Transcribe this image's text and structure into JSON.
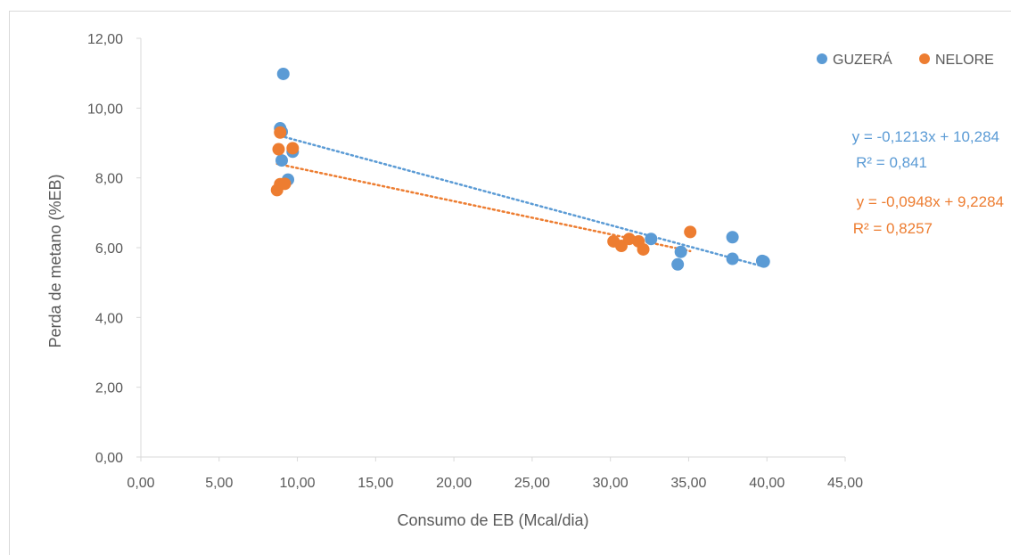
{
  "chart_data": {
    "type": "scatter",
    "title": "",
    "xlabel": "Consumo de EB (Mcal/dia)",
    "ylabel": "Perda de metano (%EB)",
    "xlim": [
      0,
      45
    ],
    "ylim": [
      0,
      12
    ],
    "x_ticks": [
      "0,00",
      "5,00",
      "10,00",
      "15,00",
      "20,00",
      "25,00",
      "30,00",
      "35,00",
      "40,00",
      "45,00"
    ],
    "y_ticks": [
      "0,00",
      "2,00",
      "4,00",
      "6,00",
      "8,00",
      "10,00",
      "12,00"
    ],
    "x_tick_values": [
      0,
      5,
      10,
      15,
      20,
      25,
      30,
      35,
      40,
      45
    ],
    "y_tick_values": [
      0,
      2,
      4,
      6,
      8,
      10,
      12
    ],
    "grid": false,
    "legend_position": "top-right",
    "series": [
      {
        "name": "GUZERÁ",
        "color": "#5b9bd5",
        "points": [
          [
            9.1,
            10.98
          ],
          [
            8.9,
            9.42
          ],
          [
            9.0,
            9.32
          ],
          [
            9.7,
            8.75
          ],
          [
            9.0,
            8.5
          ],
          [
            9.4,
            7.95
          ],
          [
            32.6,
            6.25
          ],
          [
            34.5,
            5.88
          ],
          [
            34.3,
            5.52
          ],
          [
            37.8,
            6.3
          ],
          [
            37.8,
            5.68
          ],
          [
            39.7,
            5.62
          ],
          [
            39.8,
            5.6
          ]
        ],
        "trendline": {
          "slope": -0.1213,
          "intercept": 10.284,
          "x_from": 8.9,
          "x_to": 39.8
        },
        "equation": "y = -0,1213x + 10,284",
        "r2": "R² = 0,841"
      },
      {
        "name": "NELORE",
        "color": "#ed7d31",
        "points": [
          [
            8.9,
            9.3
          ],
          [
            8.8,
            8.82
          ],
          [
            9.7,
            8.85
          ],
          [
            8.7,
            7.65
          ],
          [
            8.9,
            7.82
          ],
          [
            9.2,
            7.83
          ],
          [
            30.2,
            6.18
          ],
          [
            30.7,
            6.05
          ],
          [
            31.2,
            6.25
          ],
          [
            31.8,
            6.18
          ],
          [
            32.1,
            5.95
          ],
          [
            35.1,
            6.45
          ]
        ],
        "trendline": {
          "slope": -0.0948,
          "intercept": 9.2284,
          "x_from": 8.7,
          "x_to": 35.1
        },
        "equation": "y = -0,0948x + 9,2284",
        "r2": "R² = 0,8257"
      }
    ]
  }
}
